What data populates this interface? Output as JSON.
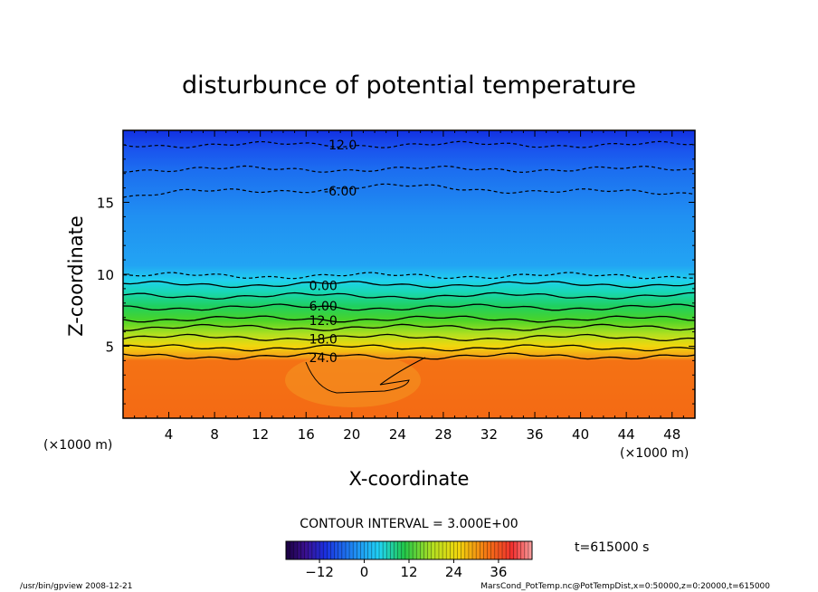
{
  "chart_data": {
    "type": "heatmap",
    "title": "disturbunce of potential temperature",
    "xlabel": "X-coordinate",
    "ylabel": "Z-coordinate",
    "x_unit": "(×1000 m)",
    "y_unit": "(×1000 m)",
    "xlim": [
      0,
      50
    ],
    "ylim": [
      0,
      20
    ],
    "x_ticks": [
      4,
      8,
      12,
      16,
      20,
      24,
      28,
      32,
      36,
      40,
      44,
      48
    ],
    "y_ticks": [
      5,
      10,
      15
    ],
    "contour_interval_label": "CONTOUR INTERVAL = 3.000E+00",
    "time_label": "t=615000 s",
    "contour_labels": [
      {
        "text": "-12.0",
        "x": 19,
        "z": 19.0
      },
      {
        "text": "-6.00",
        "x": 19,
        "z": 15.8
      },
      {
        "text": "0.00",
        "x": 17.5,
        "z": 9.2
      },
      {
        "text": "6.00",
        "x": 17.5,
        "z": 7.8
      },
      {
        "text": "12.0",
        "x": 17.5,
        "z": 6.8
      },
      {
        "text": "18.0",
        "x": 17.5,
        "z": 5.5
      },
      {
        "text": "24.0",
        "x": 17.5,
        "z": 4.2
      }
    ],
    "contour_levels": [
      {
        "value": -15,
        "z": 19.0,
        "style": "dashed"
      },
      {
        "value": -12,
        "z": 17.3,
        "style": "dashed"
      },
      {
        "value": -6,
        "z": 15.7,
        "style": "dashed"
      },
      {
        "value": 0,
        "z": 9.9,
        "style": "dashed"
      },
      {
        "value": 3,
        "z": 9.3,
        "style": "solid"
      },
      {
        "value": 6,
        "z": 8.5,
        "style": "solid"
      },
      {
        "value": 9,
        "z": 7.7,
        "style": "solid"
      },
      {
        "value": 12,
        "z": 6.9,
        "style": "solid"
      },
      {
        "value": 15,
        "z": 6.3,
        "style": "solid"
      },
      {
        "value": 18,
        "z": 5.6,
        "style": "solid"
      },
      {
        "value": 21,
        "z": 4.9,
        "style": "solid"
      },
      {
        "value": 24,
        "z": 4.3,
        "style": "solid"
      }
    ],
    "colorbar": {
      "min": -21,
      "max": 45,
      "tick_labels": [
        -12,
        0,
        12,
        24,
        36
      ]
    },
    "colors": {
      "top": "#1a2de0",
      "upper": "#1f8cf2",
      "mid": "#20d4f4",
      "green": "#22c84a",
      "yellow": "#f2d60d",
      "bottom": "#f46a14"
    }
  },
  "footer": {
    "left": "/usr/bin/gpview   2008-12-21",
    "right": "MarsCond_PotTemp.nc@PotTempDist,x=0:50000,z=0:20000,t=615000"
  }
}
